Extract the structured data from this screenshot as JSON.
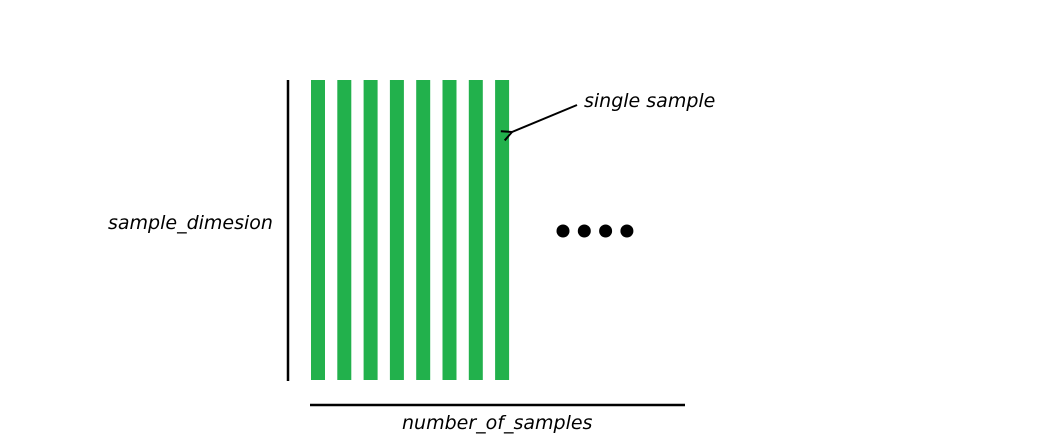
{
  "labels": {
    "sample_dimension": "sample_dimesion",
    "number_of_samples": "number_of_samples",
    "single_sample": "single sample"
  },
  "samples": {
    "count": 8,
    "color": "#22b14c"
  },
  "ellipsis": {
    "dot_count": 4,
    "color": "#000000"
  },
  "axis_color": "#000000"
}
